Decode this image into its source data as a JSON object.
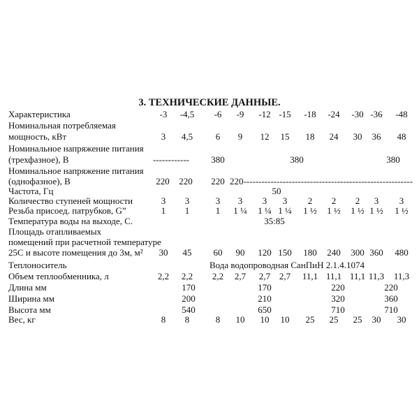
{
  "title": "3. ТЕХНИЧЕСКИЕ  ДАННЫЕ.",
  "rows": [
    {
      "labels": [
        "Характеристика"
      ],
      "values": [
        "-3",
        "-4,5",
        "-6",
        "-9",
        "-12",
        "-15",
        "-18",
        "-24",
        "-30",
        "-36",
        "-48"
      ]
    },
    {
      "labels": [
        "Номинальная потребляемая",
        "мощность, кВт"
      ],
      "values": [
        "3",
        "4,5",
        "6",
        "9",
        "12",
        "15",
        "18",
        "24",
        "30",
        "36",
        "48"
      ]
    },
    {
      "labels": [
        "Номинальное напряжение питания",
        "(трехфазное), В"
      ],
      "values": [
        "------------",
        "380",
        "380",
        "380"
      ]
    },
    {
      "labels": [
        "Номинальное напряжение питания",
        "(однофазное), В"
      ],
      "values": [
        "220",
        "220",
        "220",
        "220--------------------------------------------------------"
      ]
    },
    {
      "labels": [
        "Частота, Гц"
      ],
      "values": [
        "50"
      ]
    },
    {
      "labels": [
        "Количество ступеней мощности"
      ],
      "values": [
        "3",
        "3",
        "3",
        "3",
        "3",
        "3",
        "2",
        "2",
        "2",
        "3",
        "3"
      ]
    },
    {
      "labels": [
        "Резьба присоед. патрубков, G”"
      ],
      "values": [
        "1",
        "1",
        "1",
        "1 ¼",
        "1 ¼",
        "1 ¼",
        "1 ½",
        "1 ½",
        "1 ½",
        "1 ½",
        "1 ½"
      ]
    },
    {
      "labels": [
        "Температура воды на выходе, С."
      ],
      "values": [
        "35:85"
      ]
    },
    {
      "labels": [
        "Площадь отапливаемых",
        "помещений при расчетной температуре",
        "25С и высоте помещения до 3м, м²"
      ],
      "values": [
        "30",
        "45",
        "60",
        "90",
        "120",
        "150",
        "180",
        "240",
        "300",
        "360",
        "480"
      ]
    },
    {
      "labels": [
        "Теплоноситель"
      ],
      "values": [
        "Вода водопроводная СанПиН 2.1.4.1074"
      ]
    },
    {
      "labels": [
        "Объем теплообменника, л"
      ],
      "values": [
        "2,2",
        "2,2",
        "2,2",
        "2,7",
        "2,7",
        "2,7",
        "11,1",
        "11,1",
        "11,1",
        "11,3",
        "11,3"
      ]
    },
    {
      "labels": [
        "Длина мм"
      ],
      "values": [
        "170",
        "170",
        "220",
        "220"
      ]
    },
    {
      "labels": [
        "Ширина мм"
      ],
      "values": [
        "200",
        "210",
        "320",
        "360"
      ]
    },
    {
      "labels": [
        "Высота мм"
      ],
      "values": [
        "540",
        "650",
        "710",
        "710"
      ]
    },
    {
      "labels": [
        "Вес, кг"
      ],
      "values": [
        "8",
        "8",
        "8",
        "10",
        "10",
        "10",
        "25",
        "25",
        "25",
        "30",
        "30"
      ]
    }
  ]
}
